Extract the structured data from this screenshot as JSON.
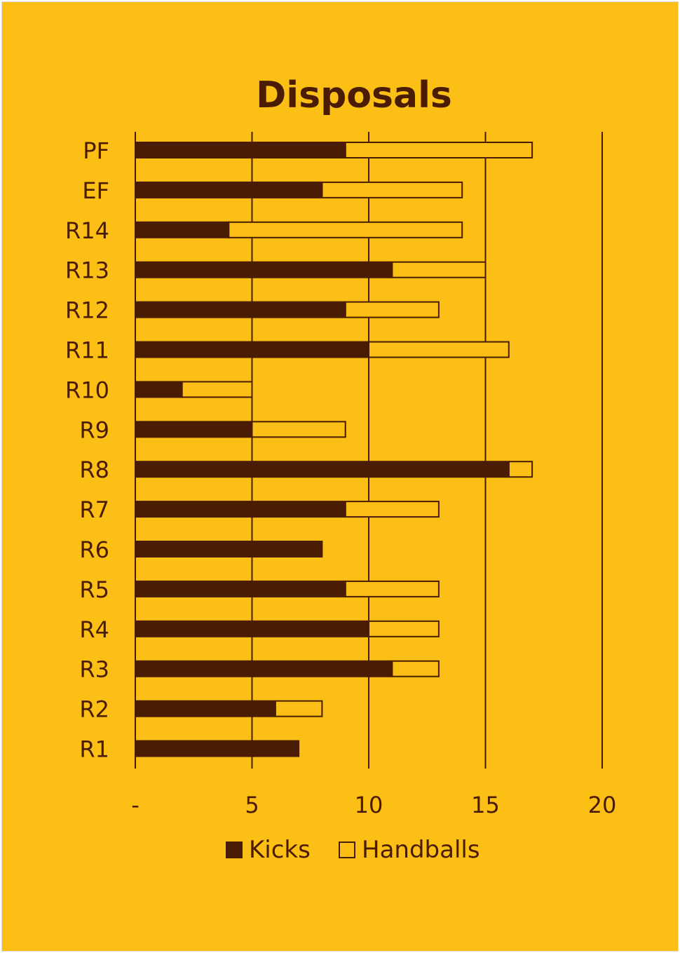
{
  "chart_data": {
    "type": "bar",
    "orientation": "horizontal",
    "stacked": true,
    "title": "Disposals",
    "categories": [
      "PF",
      "EF",
      "R14",
      "R13",
      "R12",
      "R11",
      "R10",
      "R9",
      "R8",
      "R7",
      "R6",
      "R5",
      "R4",
      "R3",
      "R2",
      "R1"
    ],
    "series": [
      {
        "name": "Kicks",
        "values": [
          9,
          8,
          4,
          11,
          9,
          10,
          2,
          5,
          16,
          9,
          8,
          9,
          10,
          11,
          6,
          7
        ]
      },
      {
        "name": "Handballs",
        "values": [
          8,
          6,
          10,
          4,
          4,
          6,
          3,
          4,
          1,
          4,
          0,
          4,
          3,
          2,
          2,
          0
        ]
      }
    ],
    "xlim": [
      0,
      20
    ],
    "xticks": [
      0,
      5,
      10,
      15,
      20
    ],
    "xtick_labels": [
      "-",
      "5",
      "10",
      "15",
      "20"
    ],
    "grid": true,
    "legend_position": "bottom",
    "colors": {
      "background": "#FCBF16",
      "kicks": "#4A1C04",
      "handballs": "#FCBF16",
      "stroke": "#4A1C04"
    }
  }
}
